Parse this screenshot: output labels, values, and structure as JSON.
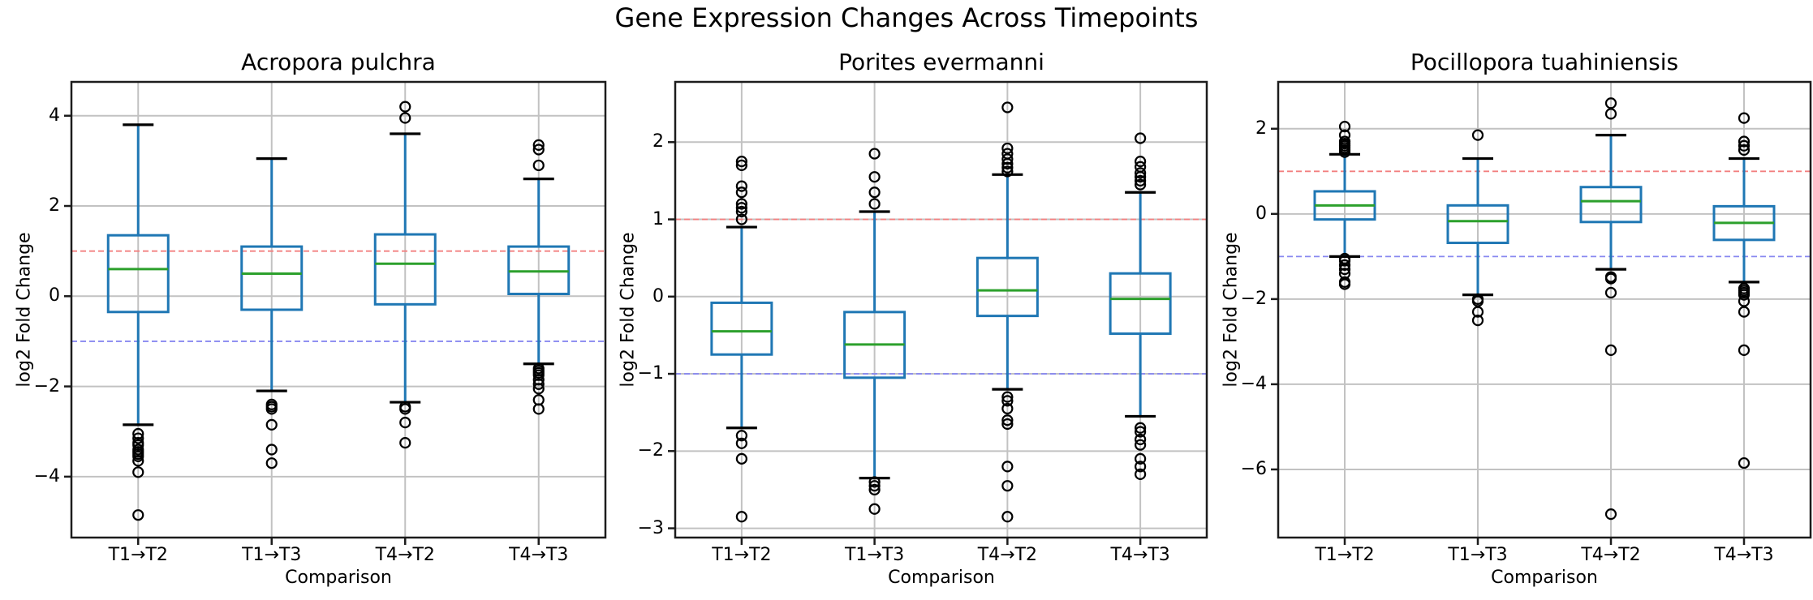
{
  "figure": {
    "title": "Gene Expression Changes Across Timepoints",
    "background": "#ffffff"
  },
  "colors": {
    "box": "#1f77b4",
    "whisker": "#1f77b4",
    "cap": "#000000",
    "median": "#2ca02c",
    "flier": "#000000",
    "grid": "#c2c2c2",
    "spine": "#1c1c1c",
    "upper_ref": "#f28080",
    "lower_ref": "#8888f0",
    "text": "#000000"
  },
  "chart_data": [
    {
      "type": "box",
      "title": "Acropora pulchra",
      "xlabel": "Comparison",
      "ylabel": "log2 Fold Change",
      "categories": [
        "T1→T2",
        "T1→T3",
        "T4→T2",
        "T4→T3"
      ],
      "ylim": [
        -5.35,
        4.75
      ],
      "yticks": [
        -4,
        -2,
        0,
        2,
        4
      ],
      "grid": true,
      "reference_lines": [
        {
          "y": 1,
          "color_key": "upper_ref",
          "style": "dashed"
        },
        {
          "y": -1,
          "color_key": "lower_ref",
          "style": "dashed"
        }
      ],
      "boxes": [
        {
          "label": "T1→T2",
          "whislo": -2.85,
          "q1": -0.35,
          "med": 0.6,
          "q3": 1.35,
          "whishi": 3.8,
          "fliers": [
            -3.05,
            -3.15,
            -3.25,
            -3.3,
            -3.4,
            -3.45,
            -3.5,
            -3.55,
            -3.65,
            -3.9,
            -4.85
          ]
        },
        {
          "label": "T1→T3",
          "whislo": -2.1,
          "q1": -0.3,
          "med": 0.5,
          "q3": 1.1,
          "whishi": 3.05,
          "fliers": [
            -2.4,
            -2.45,
            -2.5,
            -2.85,
            -3.4,
            -3.7
          ]
        },
        {
          "label": "T4→T2",
          "whislo": -2.35,
          "q1": -0.18,
          "med": 0.72,
          "q3": 1.37,
          "whishi": 3.6,
          "fliers": [
            3.95,
            4.2,
            -2.45,
            -2.5,
            -2.8,
            -3.25
          ]
        },
        {
          "label": "T4→T3",
          "whislo": -1.5,
          "q1": 0.05,
          "med": 0.55,
          "q3": 1.1,
          "whishi": 2.6,
          "fliers": [
            2.9,
            3.25,
            3.35,
            -1.6,
            -1.65,
            -1.7,
            -1.75,
            -1.85,
            -1.95,
            -2.05,
            -2.3,
            -2.5
          ]
        }
      ]
    },
    {
      "type": "box",
      "title": "Porites evermanni",
      "xlabel": "Comparison",
      "ylabel": "log2 Fold Change",
      "categories": [
        "T1→T2",
        "T1→T3",
        "T4→T2",
        "T4→T3"
      ],
      "ylim": [
        -3.12,
        2.78
      ],
      "yticks": [
        -3,
        -2,
        -1,
        0,
        1,
        2
      ],
      "grid": true,
      "reference_lines": [
        {
          "y": 1,
          "color_key": "upper_ref",
          "style": "dashed"
        },
        {
          "y": -1,
          "color_key": "lower_ref",
          "style": "dashed"
        }
      ],
      "boxes": [
        {
          "label": "T1→T2",
          "whislo": -1.7,
          "q1": -0.75,
          "med": -0.45,
          "q3": -0.08,
          "whishi": 0.9,
          "fliers": [
            1.0,
            1.1,
            1.15,
            1.2,
            1.35,
            1.43,
            1.7,
            1.75,
            -1.8,
            -1.9,
            -2.1,
            -2.85
          ]
        },
        {
          "label": "T1→T3",
          "whislo": -2.35,
          "q1": -1.05,
          "med": -0.62,
          "q3": -0.2,
          "whishi": 1.1,
          "fliers": [
            1.2,
            1.35,
            1.55,
            1.85,
            -2.4,
            -2.45,
            -2.5,
            -2.75
          ]
        },
        {
          "label": "T4→T2",
          "whislo": -1.2,
          "q1": -0.25,
          "med": 0.08,
          "q3": 0.5,
          "whishi": 1.58,
          "fliers": [
            1.62,
            1.67,
            1.72,
            1.78,
            1.85,
            1.92,
            2.45,
            -1.3,
            -1.35,
            -1.45,
            -1.6,
            -1.65,
            -2.2,
            -2.45,
            -2.85
          ]
        },
        {
          "label": "T4→T3",
          "whislo": -1.55,
          "q1": -0.48,
          "med": -0.03,
          "q3": 0.3,
          "whishi": 1.35,
          "fliers": [
            1.45,
            1.5,
            1.55,
            1.6,
            1.68,
            1.75,
            2.05,
            -1.7,
            -1.75,
            -1.85,
            -1.92,
            -2.1,
            -2.2,
            -2.3
          ]
        }
      ]
    },
    {
      "type": "box",
      "title": "Pocillopora tuahiniensis",
      "xlabel": "Comparison",
      "ylabel": "log2 Fold Change",
      "categories": [
        "T1→T2",
        "T1→T3",
        "T4→T2",
        "T4→T3"
      ],
      "ylim": [
        -7.6,
        3.1
      ],
      "yticks": [
        -6,
        -4,
        -2,
        0,
        2
      ],
      "grid": true,
      "reference_lines": [
        {
          "y": 1,
          "color_key": "upper_ref",
          "style": "dashed"
        },
        {
          "y": -1,
          "color_key": "lower_ref",
          "style": "dashed"
        }
      ],
      "boxes": [
        {
          "label": "T1→T2",
          "whislo": -1.0,
          "q1": -0.13,
          "med": 0.2,
          "q3": 0.53,
          "whishi": 1.4,
          "fliers": [
            1.45,
            1.5,
            1.55,
            1.6,
            1.65,
            1.7,
            1.85,
            2.05,
            -1.05,
            -1.1,
            -1.2,
            -1.3,
            -1.4,
            -1.6,
            -1.65
          ]
        },
        {
          "label": "T1→T3",
          "whislo": -1.9,
          "q1": -0.68,
          "med": -0.17,
          "q3": 0.2,
          "whishi": 1.3,
          "fliers": [
            1.85,
            -2.0,
            -2.05,
            -2.3,
            -2.5
          ]
        },
        {
          "label": "T4→T2",
          "whislo": -1.3,
          "q1": -0.19,
          "med": 0.3,
          "q3": 0.63,
          "whishi": 1.85,
          "fliers": [
            2.35,
            2.6,
            -1.48,
            -1.52,
            -1.85,
            -3.2,
            -7.05
          ]
        },
        {
          "label": "T4→T3",
          "whislo": -1.6,
          "q1": -0.61,
          "med": -0.21,
          "q3": 0.18,
          "whishi": 1.3,
          "fliers": [
            1.5,
            1.6,
            1.7,
            2.25,
            -1.75,
            -1.8,
            -1.85,
            -1.9,
            -2.05,
            -2.3,
            -3.2,
            -5.85
          ]
        }
      ]
    }
  ]
}
